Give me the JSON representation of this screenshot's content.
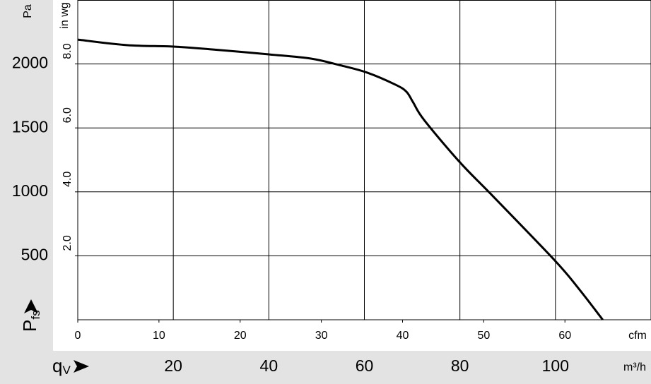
{
  "chart_data": {
    "type": "line",
    "y_label": "P",
    "y_label_sub": "fs",
    "y_unit": "Pa",
    "y2_unit": "in wg",
    "x_label": "q",
    "x_label_sub": "V",
    "x_unit": "m³/h",
    "x2_unit": "cfm",
    "xlim": [
      0,
      120
    ],
    "xticks": [
      20,
      40,
      60,
      80,
      100
    ],
    "x2lim": [
      0,
      70.6
    ],
    "x2ticks": [
      0,
      10,
      20,
      30,
      40,
      50,
      60
    ],
    "ylim": [
      0,
      2500
    ],
    "yticks": [
      500,
      1000,
      1500,
      2000
    ],
    "y2lim": [
      0,
      10
    ],
    "y2ticks": [
      {
        "value": 2,
        "label": "2.0"
      },
      {
        "value": 4,
        "label": "4.0"
      },
      {
        "value": 6,
        "label": "6.0"
      },
      {
        "value": 8,
        "label": "8.0"
      }
    ],
    "grid": true,
    "series": [
      {
        "color": "#000000",
        "x": [
          0,
          10.4,
          20,
          28.1,
          40,
          48.8,
          54.7,
          60.6,
          66.5,
          68.8,
          70.2,
          72.5,
          80,
          87.2,
          100,
          105,
          109.9
        ],
        "values": [
          2190,
          2147,
          2136,
          2114,
          2075,
          2042,
          1992,
          1932,
          1838,
          1783,
          1700,
          1562,
          1231,
          955,
          458,
          237,
          0
        ]
      }
    ]
  }
}
